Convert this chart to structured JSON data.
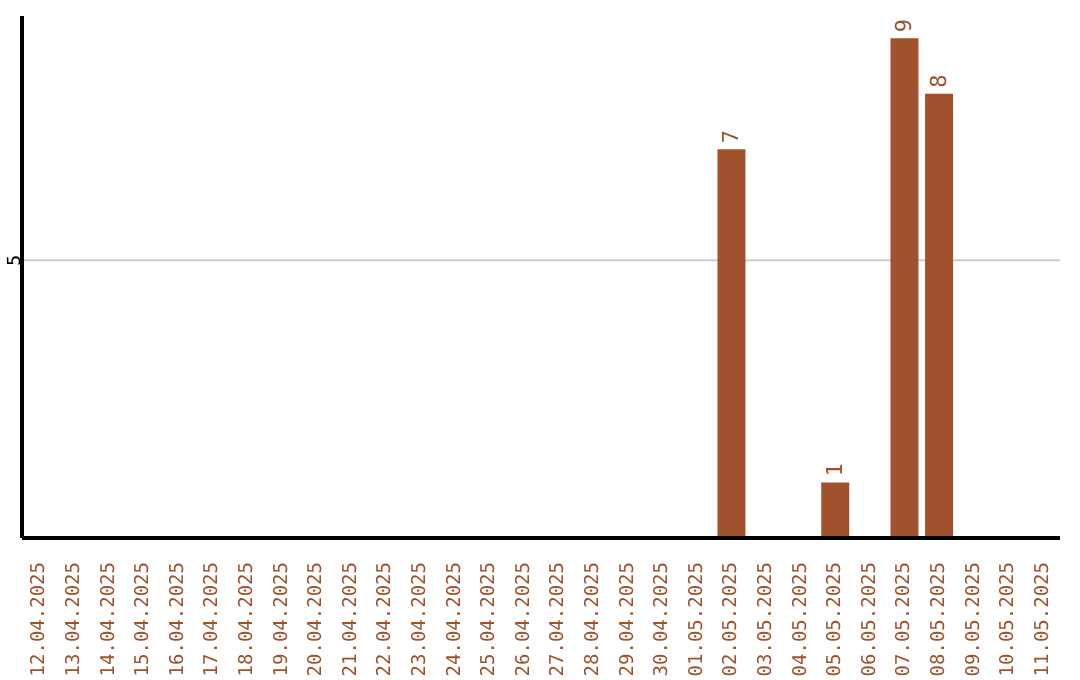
{
  "chart_data": {
    "type": "bar",
    "categories": [
      "12.04.2025",
      "13.04.2025",
      "14.04.2025",
      "15.04.2025",
      "16.04.2025",
      "17.04.2025",
      "18.04.2025",
      "19.04.2025",
      "20.04.2025",
      "21.04.2025",
      "22.04.2025",
      "23.04.2025",
      "24.04.2025",
      "25.04.2025",
      "26.04.2025",
      "27.04.2025",
      "28.04.2025",
      "29.04.2025",
      "30.04.2025",
      "01.05.2025",
      "02.05.2025",
      "03.05.2025",
      "04.05.2025",
      "05.05.2025",
      "06.05.2025",
      "07.05.2025",
      "08.05.2025",
      "09.05.2025",
      "10.05.2025",
      "11.05.2025"
    ],
    "values": [
      null,
      null,
      null,
      null,
      null,
      null,
      null,
      null,
      null,
      null,
      null,
      null,
      null,
      null,
      null,
      null,
      null,
      null,
      null,
      null,
      7,
      null,
      null,
      1,
      null,
      9,
      8,
      null,
      null,
      null
    ],
    "color": "#a0522d",
    "ylim": [
      0,
      9.4
    ],
    "yticks": [
      5
    ],
    "grid": "y",
    "data_labels": true,
    "legend": false
  }
}
